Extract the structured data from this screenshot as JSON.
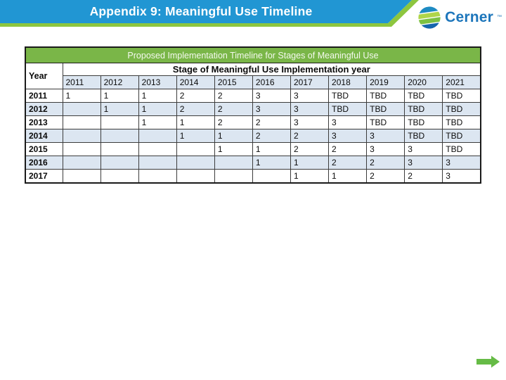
{
  "slide": {
    "title": "Appendix 9: Meaningful Use Timeline",
    "logo_text": "Cerner",
    "logo_tm": "™"
  },
  "table": {
    "title": "Proposed Implementation Timeline for Stages of Meaningful Use",
    "subtitle": "Stage of Meaningful Use Implementation year",
    "year_col_header": "Year",
    "columns": [
      "2011",
      "2012",
      "2013",
      "2014",
      "2015",
      "2016",
      "2017",
      "2018",
      "2019",
      "2020",
      "2021"
    ],
    "rows": [
      {
        "label": "2011",
        "values": [
          "1",
          "1",
          "1",
          "2",
          "2",
          "3",
          "3",
          "TBD",
          "TBD",
          "TBD",
          "TBD"
        ]
      },
      {
        "label": "2012",
        "values": [
          "",
          "1",
          "1",
          "2",
          "2",
          "3",
          "3",
          "TBD",
          "TBD",
          "TBD",
          "TBD"
        ]
      },
      {
        "label": "2013",
        "values": [
          "",
          "",
          "1",
          "1",
          "2",
          "2",
          "3",
          "3",
          "TBD",
          "TBD",
          "TBD"
        ]
      },
      {
        "label": "2014",
        "values": [
          "",
          "",
          "",
          "1",
          "1",
          "2",
          "2",
          "3",
          "3",
          "TBD",
          "TBD"
        ]
      },
      {
        "label": "2015",
        "values": [
          "",
          "",
          "",
          "",
          "1",
          "1",
          "2",
          "2",
          "3",
          "3",
          "TBD"
        ]
      },
      {
        "label": "2016",
        "values": [
          "",
          "",
          "",
          "",
          "",
          "1",
          "1",
          "2",
          "2",
          "3",
          "3"
        ]
      },
      {
        "label": "2017",
        "values": [
          "",
          "",
          "",
          "",
          "",
          "",
          "1",
          "1",
          "2",
          "2",
          "3"
        ]
      }
    ]
  },
  "colors": {
    "header_blue": "#2196D3",
    "banner_green": "#8DC63F",
    "table_header_green": "#7AB648",
    "row_alt_blue": "#DCE6F1",
    "logo_blue": "#1D76BB",
    "logo_dark_blue": "#1566AD",
    "arrow_green": "#66BB46",
    "title_text": "#FFFFFF",
    "body_text": "#000000"
  }
}
